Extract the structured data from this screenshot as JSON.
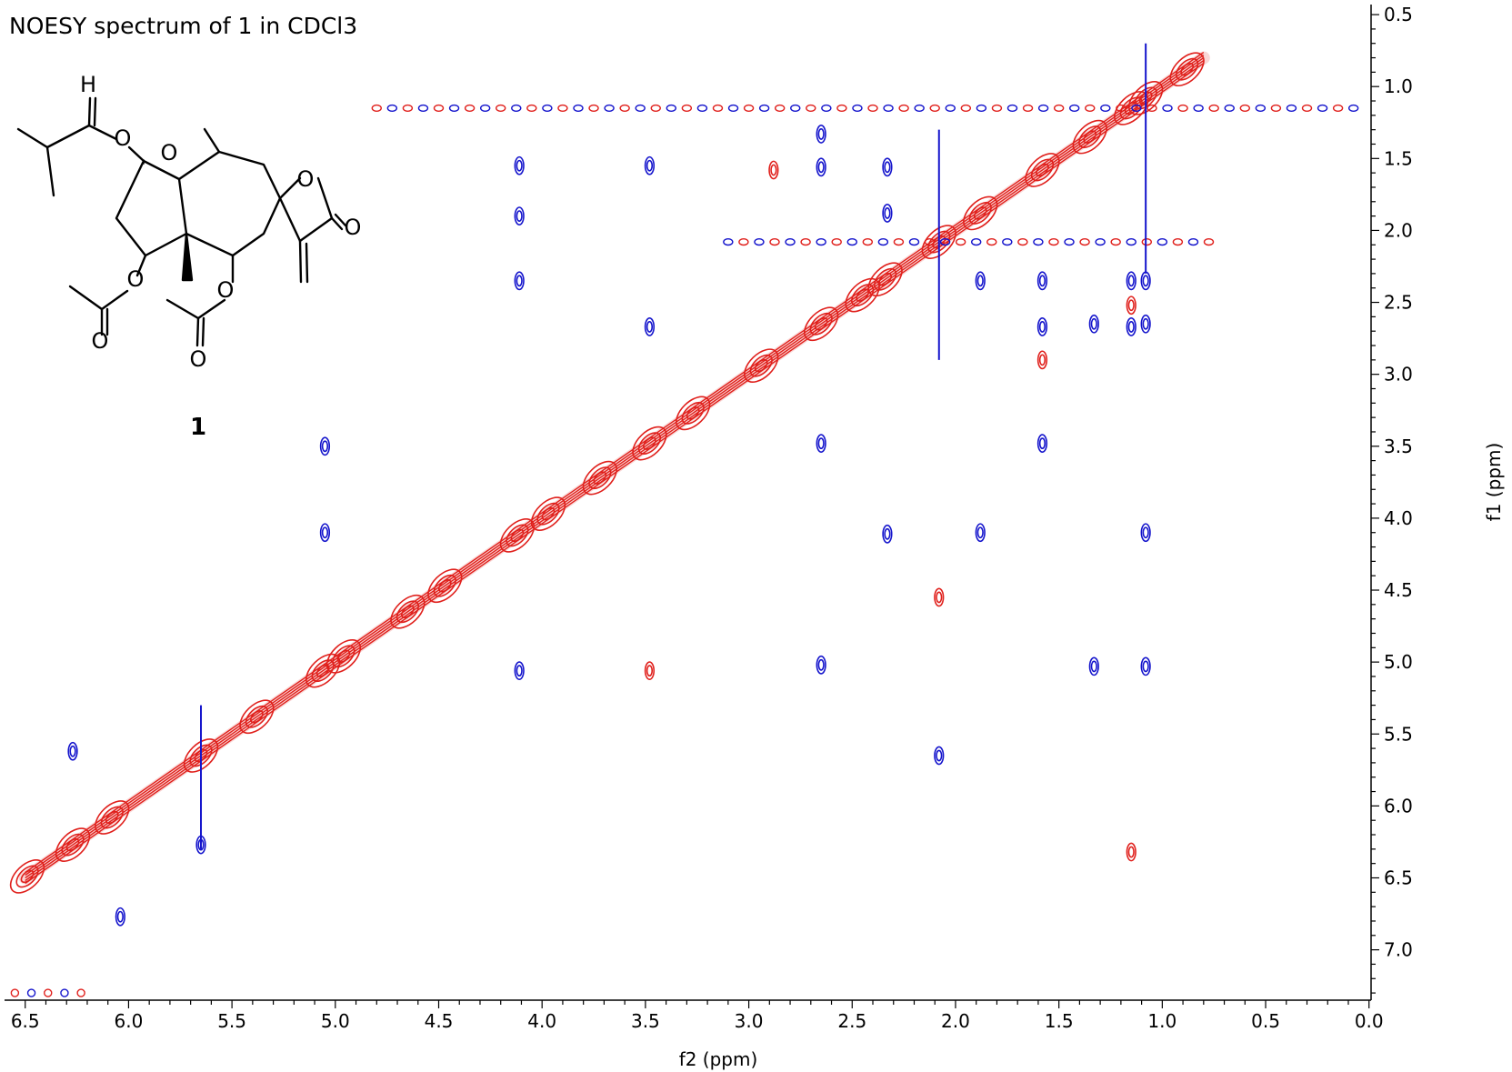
{
  "chart_data": {
    "type": "2d-nmr-contour",
    "title": "NOESY spectrum of 1 in CDCl3",
    "xlabel": "f2 (ppm)",
    "ylabel": "f1 (ppm)",
    "xlim": [
      6.6,
      -0.01
    ],
    "ylim": [
      0.43,
      7.35
    ],
    "x_ticks": [
      "6.5",
      "6.0",
      "5.5",
      "5.0",
      "4.5",
      "4.0",
      "3.5",
      "3.0",
      "2.5",
      "2.0",
      "1.5",
      "1.0",
      "0.5",
      "0.0"
    ],
    "y_ticks": [
      "0.5",
      "1.0",
      "1.5",
      "2.0",
      "2.5",
      "3.0",
      "3.5",
      "4.0",
      "4.5",
      "5.0",
      "5.5",
      "6.0",
      "6.5",
      "7.0"
    ],
    "x_reversed": true,
    "y_reversed": true,
    "colors": {
      "positive": "#e0201c",
      "negative": "#1414cc"
    },
    "diagonal_peaks": [
      6.49,
      6.27,
      6.08,
      5.65,
      5.38,
      5.06,
      4.96,
      4.65,
      4.47,
      4.12,
      3.97,
      3.72,
      3.48,
      3.27,
      2.94,
      2.65,
      2.45,
      2.34,
      2.08,
      1.88,
      1.58,
      1.35,
      1.15,
      1.08,
      0.88
    ],
    "cross_peaks": [
      {
        "f2": 5.05,
        "f1": 3.5,
        "sign": "neg"
      },
      {
        "f2": 5.05,
        "f1": 4.1,
        "sign": "neg"
      },
      {
        "f2": 4.11,
        "f1": 1.55,
        "sign": "neg"
      },
      {
        "f2": 4.11,
        "f1": 1.9,
        "sign": "neg"
      },
      {
        "f2": 4.11,
        "f1": 2.35,
        "sign": "neg"
      },
      {
        "f2": 4.11,
        "f1": 5.06,
        "sign": "neg"
      },
      {
        "f2": 3.48,
        "f1": 1.55,
        "sign": "neg"
      },
      {
        "f2": 3.48,
        "f1": 2.67,
        "sign": "neg"
      },
      {
        "f2": 3.48,
        "f1": 5.06,
        "sign": "pos"
      },
      {
        "f2": 2.88,
        "f1": 1.58,
        "sign": "pos"
      },
      {
        "f2": 2.65,
        "f1": 1.33,
        "sign": "neg"
      },
      {
        "f2": 2.65,
        "f1": 1.56,
        "sign": "neg"
      },
      {
        "f2": 2.65,
        "f1": 3.48,
        "sign": "neg"
      },
      {
        "f2": 2.65,
        "f1": 5.02,
        "sign": "neg"
      },
      {
        "f2": 2.33,
        "f1": 1.56,
        "sign": "neg"
      },
      {
        "f2": 2.33,
        "f1": 1.88,
        "sign": "neg"
      },
      {
        "f2": 2.33,
        "f1": 4.11,
        "sign": "neg"
      },
      {
        "f2": 2.08,
        "f1": 4.55,
        "sign": "pos"
      },
      {
        "f2": 2.08,
        "f1": 5.65,
        "sign": "neg"
      },
      {
        "f2": 1.88,
        "f1": 2.35,
        "sign": "neg"
      },
      {
        "f2": 1.88,
        "f1": 4.1,
        "sign": "neg"
      },
      {
        "f2": 1.58,
        "f1": 2.35,
        "sign": "neg"
      },
      {
        "f2": 1.58,
        "f1": 2.67,
        "sign": "neg"
      },
      {
        "f2": 1.58,
        "f1": 2.9,
        "sign": "pos"
      },
      {
        "f2": 1.58,
        "f1": 3.48,
        "sign": "neg"
      },
      {
        "f2": 1.33,
        "f1": 2.65,
        "sign": "neg"
      },
      {
        "f2": 1.33,
        "f1": 5.03,
        "sign": "neg"
      },
      {
        "f2": 1.15,
        "f1": 2.35,
        "sign": "neg"
      },
      {
        "f2": 1.15,
        "f1": 2.52,
        "sign": "pos"
      },
      {
        "f2": 1.15,
        "f1": 2.67,
        "sign": "neg"
      },
      {
        "f2": 1.15,
        "f1": 6.32,
        "sign": "pos"
      },
      {
        "f2": 1.08,
        "f1": 2.35,
        "sign": "neg"
      },
      {
        "f2": 1.08,
        "f1": 2.65,
        "sign": "neg"
      },
      {
        "f2": 1.08,
        "f1": 4.1,
        "sign": "neg"
      },
      {
        "f2": 1.08,
        "f1": 5.03,
        "sign": "neg"
      },
      {
        "f2": 6.27,
        "f1": 5.62,
        "sign": "neg"
      },
      {
        "f2": 5.65,
        "f1": 6.27,
        "sign": "neg"
      },
      {
        "f2": 6.04,
        "f1": 6.77,
        "sign": "neg"
      }
    ]
  },
  "structure": {
    "atom_labels": [
      "O",
      "O",
      "H",
      "O",
      "O",
      "O",
      "O",
      "O",
      "O"
    ],
    "compound_label": "1"
  }
}
